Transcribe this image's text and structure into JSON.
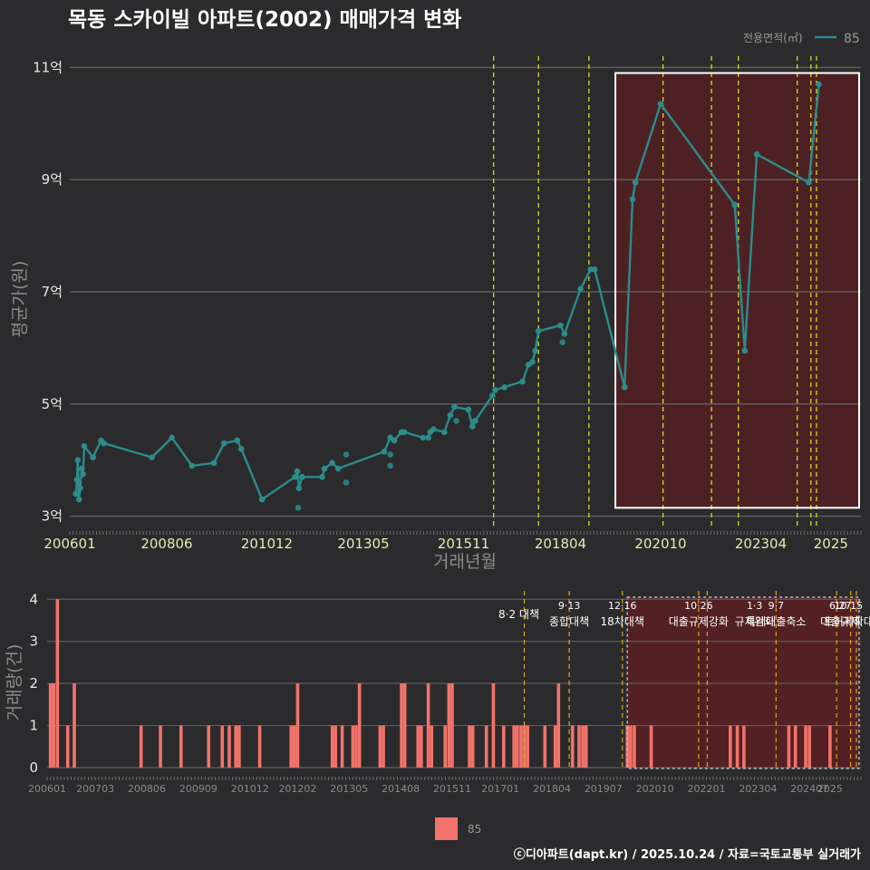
{
  "title": "목동 스카이빌 아파트(2002) 매매가격 변화",
  "credit": "ⓒ디아파트(dapt.kr) / 2025.10.24 / 자료=국토교통부 실거래가",
  "legend_top": {
    "label": "전용면적(㎡)",
    "value": "85"
  },
  "legend_bottom": {
    "value": "85"
  },
  "colors": {
    "line": "#2b8c8a",
    "bar": "#f2736b",
    "vline": "#d8d820",
    "vline2": "#e0a020",
    "highlight": "#5a1f22"
  },
  "chart_data": [
    {
      "type": "line",
      "title": "목동 스카이빌 아파트(2002) 매매가격 변화",
      "xlabel": "거래년월",
      "ylabel": "평균가(원)",
      "series_name": "85",
      "xlim": [
        2006.0,
        2025.75
      ],
      "ylim": [
        2.8,
        11.2
      ],
      "y_ticks": [
        3,
        5,
        7,
        9,
        11
      ],
      "y_tick_labels": [
        "3억",
        "5억",
        "7억",
        "9억",
        "11억"
      ],
      "x_ticks": [
        2006.0,
        2008.42,
        2010.92,
        2013.33,
        2015.83,
        2018.25,
        2020.75,
        2023.25,
        2025.0
      ],
      "x_tick_labels": [
        "200601",
        "200806",
        "201012",
        "201305",
        "201511",
        "201804",
        "202010",
        "202304",
        "2025"
      ],
      "points": [
        [
          2006.15,
          3.4
        ],
        [
          2006.18,
          3.65
        ],
        [
          2006.2,
          4.0
        ],
        [
          2006.23,
          3.3
        ],
        [
          2006.26,
          3.5
        ],
        [
          2006.3,
          3.85
        ],
        [
          2006.33,
          3.75
        ],
        [
          2006.36,
          4.25
        ],
        [
          2006.58,
          4.05
        ],
        [
          2006.78,
          4.35
        ],
        [
          2006.85,
          4.3
        ],
        [
          2008.05,
          4.05
        ],
        [
          2008.55,
          4.4
        ],
        [
          2009.05,
          3.9
        ],
        [
          2009.6,
          3.95
        ],
        [
          2009.85,
          4.3
        ],
        [
          2010.18,
          4.35
        ],
        [
          2010.28,
          4.2
        ],
        [
          2010.8,
          3.3
        ],
        [
          2011.62,
          3.7
        ],
        [
          2011.68,
          3.8
        ],
        [
          2011.72,
          3.5
        ],
        [
          2011.8,
          3.7
        ],
        [
          2012.3,
          3.7
        ],
        [
          2012.36,
          3.85
        ],
        [
          2012.55,
          3.95
        ],
        [
          2012.7,
          3.85
        ],
        [
          2013.85,
          4.15
        ],
        [
          2014.0,
          4.4
        ],
        [
          2014.1,
          4.35
        ],
        [
          2014.28,
          4.5
        ],
        [
          2014.35,
          4.5
        ],
        [
          2014.82,
          4.4
        ],
        [
          2014.95,
          4.4
        ],
        [
          2015.0,
          4.5
        ],
        [
          2015.08,
          4.55
        ],
        [
          2015.35,
          4.5
        ],
        [
          2015.5,
          4.8
        ],
        [
          2015.6,
          4.95
        ],
        [
          2015.95,
          4.9
        ],
        [
          2016.05,
          4.6
        ],
        [
          2016.12,
          4.7
        ],
        [
          2016.55,
          5.15
        ],
        [
          2016.62,
          5.25
        ],
        [
          2016.85,
          5.3
        ],
        [
          2017.3,
          5.4
        ],
        [
          2017.45,
          5.7
        ],
        [
          2017.55,
          5.75
        ],
        [
          2017.62,
          5.95
        ],
        [
          2017.7,
          6.3
        ],
        [
          2018.25,
          6.4
        ],
        [
          2018.35,
          6.25
        ],
        [
          2018.75,
          7.05
        ],
        [
          2019.0,
          7.4
        ],
        [
          2019.1,
          7.4
        ],
        [
          2019.85,
          5.3
        ],
        [
          2020.05,
          8.65
        ],
        [
          2020.12,
          8.95
        ],
        [
          2020.75,
          10.35
        ],
        [
          2022.6,
          8.55
        ],
        [
          2022.85,
          5.95
        ],
        [
          2023.15,
          9.45
        ],
        [
          2024.45,
          8.95
        ],
        [
          2024.7,
          10.7
        ]
      ],
      "outlier_points": [
        [
          2011.7,
          3.15
        ],
        [
          2012.9,
          4.1
        ],
        [
          2012.9,
          3.6
        ],
        [
          2014.0,
          3.9
        ],
        [
          2014.0,
          4.1
        ],
        [
          2015.65,
          4.7
        ],
        [
          2018.3,
          6.1
        ]
      ],
      "policy_lines": [
        2016.58,
        2017.7,
        2018.96,
        2020.81,
        2022.02,
        2022.69,
        2024.16,
        2024.5,
        2024.64
      ],
      "highlight_range": [
        2019.62,
        2025.75
      ]
    },
    {
      "type": "bar",
      "xlabel": "",
      "ylabel": "거래량(건)",
      "series_name": "85",
      "xlim": [
        2006.0,
        2025.75
      ],
      "ylim": [
        0,
        4.2
      ],
      "y_ticks": [
        0,
        1,
        2,
        3,
        4
      ],
      "y_tick_labels": [
        "0",
        "1",
        "2",
        "3",
        "4"
      ],
      "x_ticks": [
        2006.0,
        2007.17,
        2008.42,
        2009.67,
        2010.92,
        2012.08,
        2013.33,
        2014.58,
        2015.83,
        2017.0,
        2018.25,
        2019.5,
        2020.75,
        2022.0,
        2023.25,
        2024.5,
        2025.0
      ],
      "x_tick_labels": [
        "200601",
        "200703",
        "200806",
        "200909",
        "201012",
        "201202",
        "201305",
        "201408",
        "201511",
        "201701",
        "201804",
        "201907",
        "202010",
        "202201",
        "202304",
        "202407",
        "2025"
      ],
      "bars": [
        [
          2006.08,
          2
        ],
        [
          2006.16,
          2
        ],
        [
          2006.25,
          4
        ],
        [
          2006.5,
          1
        ],
        [
          2006.66,
          2
        ],
        [
          2008.28,
          1
        ],
        [
          2008.75,
          1
        ],
        [
          2009.25,
          1
        ],
        [
          2009.92,
          1
        ],
        [
          2010.25,
          1
        ],
        [
          2010.42,
          1
        ],
        [
          2010.58,
          1
        ],
        [
          2010.66,
          1
        ],
        [
          2011.16,
          1
        ],
        [
          2011.92,
          1
        ],
        [
          2012.0,
          1
        ],
        [
          2012.08,
          2
        ],
        [
          2012.92,
          1
        ],
        [
          2013.0,
          1
        ],
        [
          2013.16,
          1
        ],
        [
          2013.42,
          1
        ],
        [
          2013.5,
          1
        ],
        [
          2013.58,
          2
        ],
        [
          2014.08,
          1
        ],
        [
          2014.16,
          1
        ],
        [
          2014.6,
          2
        ],
        [
          2014.68,
          2
        ],
        [
          2015.0,
          1
        ],
        [
          2015.08,
          1
        ],
        [
          2015.25,
          2
        ],
        [
          2015.33,
          1
        ],
        [
          2015.66,
          1
        ],
        [
          2015.75,
          2
        ],
        [
          2015.83,
          2
        ],
        [
          2016.25,
          1
        ],
        [
          2016.33,
          1
        ],
        [
          2016.66,
          1
        ],
        [
          2016.83,
          2
        ],
        [
          2017.08,
          1
        ],
        [
          2017.33,
          1
        ],
        [
          2017.41,
          1
        ],
        [
          2017.5,
          1
        ],
        [
          2017.58,
          1
        ],
        [
          2017.66,
          1
        ],
        [
          2018.08,
          1
        ],
        [
          2018.33,
          1
        ],
        [
          2018.41,
          2
        ],
        [
          2018.75,
          1
        ],
        [
          2018.91,
          1
        ],
        [
          2019.0,
          1
        ],
        [
          2019.08,
          1
        ],
        [
          2020.08,
          1
        ],
        [
          2020.16,
          1
        ],
        [
          2020.25,
          1
        ],
        [
          2020.66,
          1
        ],
        [
          2022.58,
          1
        ],
        [
          2022.75,
          1
        ],
        [
          2022.91,
          1
        ],
        [
          2024.0,
          1
        ],
        [
          2024.16,
          1
        ],
        [
          2024.41,
          1
        ],
        [
          2024.5,
          1
        ],
        [
          2025.0,
          1
        ]
      ],
      "policy_lines": [
        2017.58,
        2018.67,
        2019.96,
        2021.81,
        2022.02,
        2023.69,
        2025.16,
        2025.5,
        2025.64
      ],
      "highlight_range": [
        2020.08,
        2025.75
      ],
      "events": [
        {
          "x": 2017.58,
          "date": "8·2 대책",
          "name": ""
        },
        {
          "x": 2018.67,
          "date": "9·13",
          "name": "종합대책"
        },
        {
          "x": 2019.96,
          "date": "12·16",
          "name": "18차대책"
        },
        {
          "x": 2021.81,
          "date": "10·26",
          "name": "대출규제강화"
        },
        {
          "x": 2023.17,
          "date": "1·3",
          "name": "규제완화"
        },
        {
          "x": 2023.69,
          "date": "9·7",
          "name": "특례대출축소"
        },
        {
          "x": 2025.25,
          "date": "6·27",
          "name": "대출규제"
        },
        {
          "x": 2025.45,
          "date": "10·15",
          "name": "토허제확대"
        }
      ]
    }
  ]
}
